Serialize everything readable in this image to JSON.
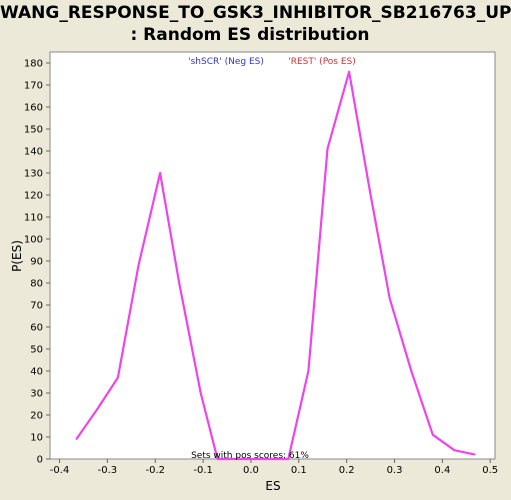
{
  "chart_data": {
    "type": "line",
    "title_line1": "WANG_RESPONSE_TO_GSK3_INHIBITOR_SB216763_UP",
    "title_line2": ": Random ES distribution",
    "xlabel": "ES",
    "ylabel": "P(ES)",
    "xlim": [
      -0.42,
      0.51
    ],
    "ylim": [
      0,
      185
    ],
    "xticks": [
      "-0.4",
      "-0.3",
      "-0.2",
      "-0.1",
      "0.0",
      "0.1",
      "0.2",
      "0.3",
      "0.4",
      "0.5"
    ],
    "xtick_values": [
      -0.4,
      -0.3,
      -0.2,
      -0.1,
      0.0,
      0.1,
      0.2,
      0.3,
      0.4,
      0.5
    ],
    "yticks": [
      "0",
      "10",
      "20",
      "30",
      "40",
      "50",
      "60",
      "70",
      "80",
      "90",
      "100",
      "110",
      "120",
      "130",
      "140",
      "150",
      "160",
      "170",
      "180"
    ],
    "ytick_values": [
      0,
      10,
      20,
      30,
      40,
      50,
      60,
      70,
      80,
      90,
      100,
      110,
      120,
      130,
      140,
      150,
      160,
      170,
      180
    ],
    "legend": [
      {
        "text": "'shSCR' (Neg ES)",
        "color": "#3333cc"
      },
      {
        "text": "'REST' (Pos ES)",
        "color": "#cc3333"
      }
    ],
    "annotation": "Sets with pos scores: 61%",
    "series": [
      {
        "color": "#ee44ee",
        "x": [
          -0.365,
          -0.32,
          -0.278,
          -0.235,
          -0.19,
          -0.15,
          -0.105,
          -0.07,
          -0.03,
          0.01,
          0.045,
          0.078,
          0.12,
          0.16,
          0.205,
          0.25,
          0.29,
          0.335,
          0.38,
          0.425,
          0.468
        ],
        "y": [
          9,
          23,
          37,
          88,
          130,
          80,
          30,
          0,
          0,
          0,
          0,
          0,
          40,
          141,
          176,
          120,
          73,
          40,
          11,
          4,
          2
        ]
      }
    ],
    "grid": false,
    "background": "#ffffff",
    "legend_placement": "top-center"
  }
}
